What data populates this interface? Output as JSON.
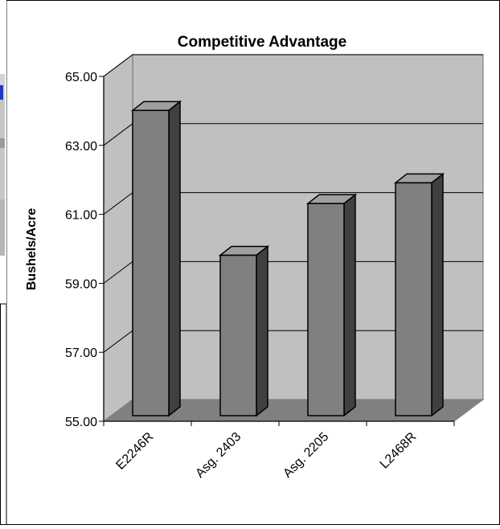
{
  "chart_data": {
    "type": "bar",
    "title": "Competitive Advantage",
    "xlabel": "",
    "ylabel": "Bushels/Acre",
    "ylim": [
      55,
      65
    ],
    "yticks": [
      "55.00",
      "57.00",
      "59.00",
      "61.00",
      "63.00",
      "65.00"
    ],
    "categories": [
      "E2246R",
      "Asg. 2403",
      "Asg. 2205",
      "L2468R"
    ],
    "values": [
      63.85,
      59.65,
      61.15,
      61.75
    ],
    "grid": true,
    "legend": "none",
    "style": "3d-column"
  },
  "colors": {
    "wall": "#c0c0c0",
    "floor": "#808080",
    "bar_front": "#808080",
    "bar_side": "#404040",
    "bar_top": "#a0a0a0"
  }
}
